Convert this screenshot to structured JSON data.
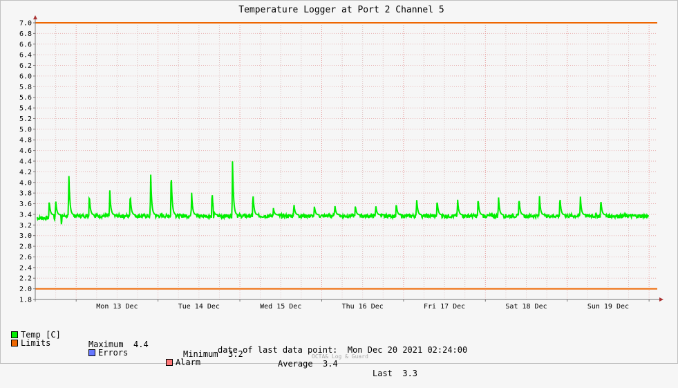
{
  "chart_data": {
    "type": "line",
    "title": "Temperature Logger at Port 2 Channel 5",
    "ylim": [
      1.8,
      7.0
    ],
    "yticks": [
      "1.8",
      "2.0",
      "2.2",
      "2.4",
      "2.6",
      "2.8",
      "3.0",
      "3.2",
      "3.4",
      "3.6",
      "3.8",
      "4.0",
      "4.2",
      "4.4",
      "4.6",
      "4.8",
      "5.0",
      "5.2",
      "5.4",
      "5.6",
      "5.8",
      "6.0",
      "6.2",
      "6.4",
      "6.6",
      "6.8",
      "7.0"
    ],
    "xlim": [
      12.5,
      20.1
    ],
    "xlabels": [
      {
        "day": 13,
        "label": "Mon 13 Dec"
      },
      {
        "day": 14,
        "label": "Tue 14 Dec"
      },
      {
        "day": 15,
        "label": "Wed 15 Dec"
      },
      {
        "day": 16,
        "label": "Thu 16 Dec"
      },
      {
        "day": 17,
        "label": "Fri 17 Dec"
      },
      {
        "day": 18,
        "label": "Sat 18 Dec"
      },
      {
        "day": 19,
        "label": "Sun 19 Dec"
      }
    ],
    "grid": true,
    "series": [
      {
        "name": "Temp [C]",
        "color": "#00ee00",
        "baseline": 3.37,
        "peaks": [
          [
            12.67,
            3.65
          ],
          [
            12.75,
            3.66
          ],
          [
            12.91,
            4.2
          ],
          [
            13.16,
            3.78
          ],
          [
            13.41,
            3.88
          ],
          [
            13.66,
            3.79
          ],
          [
            13.91,
            4.19
          ],
          [
            14.16,
            4.24
          ],
          [
            14.41,
            3.81
          ],
          [
            14.66,
            3.85
          ],
          [
            14.91,
            4.41
          ],
          [
            15.16,
            3.81
          ],
          [
            15.41,
            3.5
          ],
          [
            15.66,
            3.6
          ],
          [
            15.91,
            3.55
          ],
          [
            16.16,
            3.57
          ],
          [
            16.41,
            3.56
          ],
          [
            16.66,
            3.56
          ],
          [
            16.91,
            3.6
          ],
          [
            17.16,
            3.69
          ],
          [
            17.41,
            3.67
          ],
          [
            17.66,
            3.69
          ],
          [
            17.91,
            3.71
          ],
          [
            18.16,
            3.73
          ],
          [
            18.41,
            3.72
          ],
          [
            18.66,
            3.75
          ],
          [
            18.91,
            3.74
          ],
          [
            19.16,
            3.73
          ],
          [
            19.41,
            3.68
          ]
        ],
        "dips": [
          [
            12.82,
            3.19
          ],
          [
            14.68,
            3.3
          ]
        ]
      },
      {
        "name": "Limits",
        "color": "#ee6600",
        "values": [
          2.0,
          7.0
        ]
      }
    ],
    "stats": {
      "max_label": "Maximum",
      "max": "4.4",
      "min_label": "Minimum",
      "min": "3.2",
      "avg_label": "Average",
      "avg": "3.4",
      "last_label": "Last",
      "last": "3.3"
    },
    "legend": {
      "temp": "Temp [C]",
      "limits": "Limits",
      "errors": "Errors",
      "alarm": "Alarm"
    },
    "colors": {
      "temp": "#00ee00",
      "limits": "#ee6600",
      "errors": "#6677ff",
      "alarm": "#ff7777"
    },
    "footer": {
      "label": "date of last data point:",
      "value": "Mon Dec 20 2021 02:24:00",
      "credit": "OCTA& Log & Guard"
    }
  }
}
